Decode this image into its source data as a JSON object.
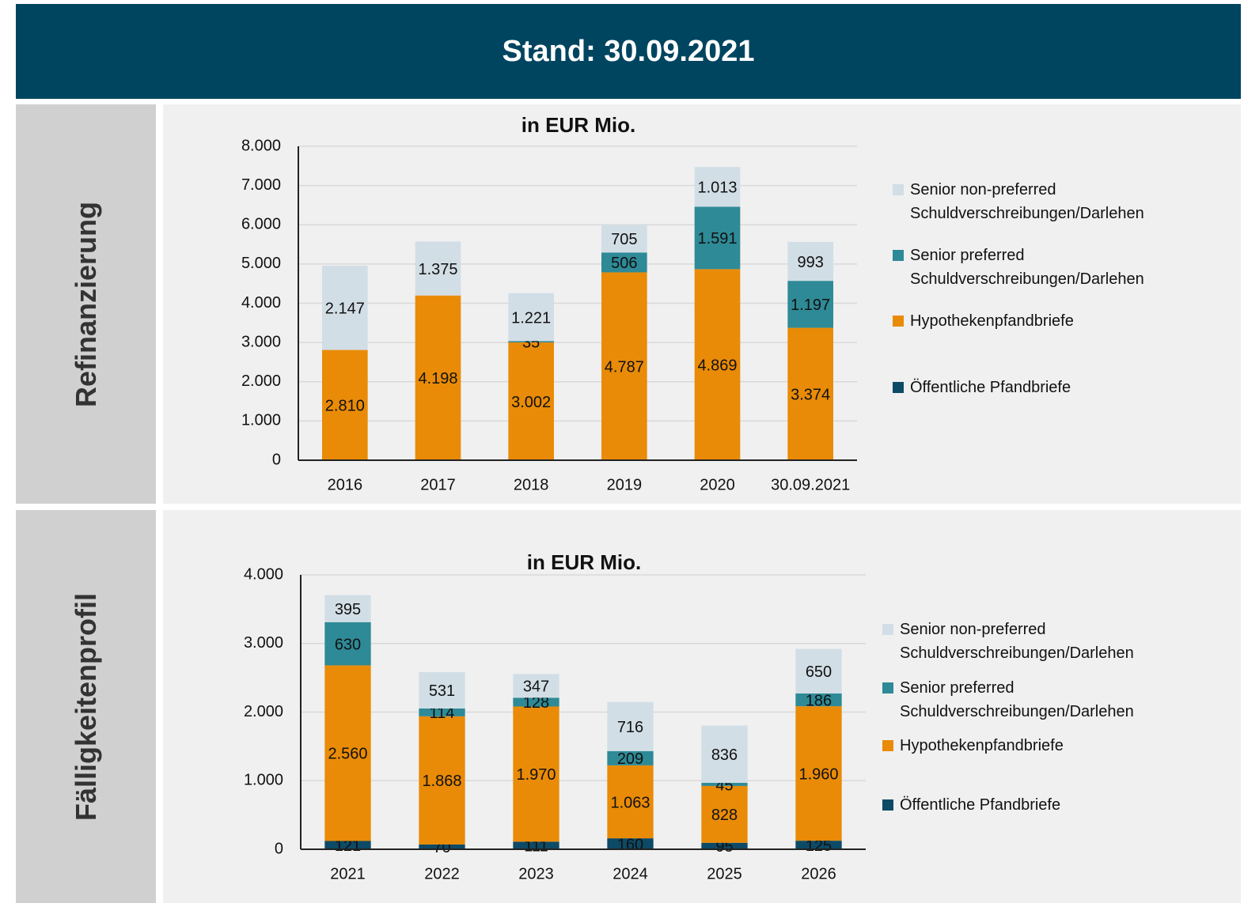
{
  "header": {
    "title": "Stand:  30.09.2021"
  },
  "sections": [
    "Refinanzierung",
    "Fälligkeitenprofil"
  ],
  "chart_data": [
    {
      "type": "bar",
      "stacked": true,
      "title": "in EUR Mio.",
      "categories": [
        "2016",
        "2017",
        "2018",
        "2019",
        "2020",
        "30.09.2021"
      ],
      "ylim": [
        0,
        8000
      ],
      "grid": true,
      "legend": "right",
      "yticks": [
        0,
        {
          "value": 1000,
          "label": "1.000"
        },
        {
          "value": 2000,
          "label": "2.000"
        },
        {
          "value": 3000,
          "label": "3.000"
        },
        {
          "value": 4000,
          "label": "4.000"
        },
        {
          "value": 5000,
          "label": "5.000"
        },
        {
          "value": 6000,
          "label": "6.000"
        },
        {
          "value": 7000,
          "label": "7.000"
        },
        {
          "value": 8000,
          "label": "8.000"
        }
      ],
      "series": [
        {
          "name": "Senior non-preferred Schuldverschreibungen/Darlehen",
          "color": "#d2dee6",
          "values": [
            2147,
            1375,
            1221,
            705,
            1013,
            993
          ],
          "value_labels": [
            "2.147",
            "1.375",
            "1.221",
            "705",
            "1.013",
            "993"
          ]
        },
        {
          "name": "Senior preferred Schuldverschreibungen/Darlehen",
          "color": "#2e8a96",
          "values": [
            null,
            null,
            35,
            506,
            1591,
            1197
          ],
          "value_labels": [
            null,
            null,
            "35",
            "506",
            "1.591",
            "1.197"
          ]
        },
        {
          "name": "Hypothekenpfandbriefe",
          "color": "#e98b07",
          "values": [
            2810,
            4198,
            3002,
            4787,
            4869,
            3374
          ],
          "value_labels": [
            "2.810",
            "4.198",
            "3.002",
            "4.787",
            "4.869",
            "3.374"
          ]
        },
        {
          "name": "Öffentliche Pfandbriefe",
          "color": "#0d4a66",
          "values": [
            null,
            null,
            null,
            null,
            null,
            null
          ],
          "value_labels": [
            null,
            null,
            null,
            null,
            null,
            null
          ]
        }
      ]
    },
    {
      "type": "bar",
      "stacked": true,
      "title": "in EUR Mio.",
      "categories": [
        "2021",
        "2022",
        "2023",
        "2024",
        "2025",
        "2026"
      ],
      "ylim": [
        0,
        4000
      ],
      "grid": true,
      "legend": "right",
      "yticks": [
        0,
        {
          "value": 1000,
          "label": "1.000"
        },
        {
          "value": 2000,
          "label": "2.000"
        },
        {
          "value": 3000,
          "label": "3.000"
        },
        {
          "value": 4000,
          "label": "4.000"
        }
      ],
      "series": [
        {
          "name": "Senior non-preferred Schuldverschreibungen/Darlehen",
          "color": "#d2dee6",
          "values": [
            395,
            531,
            347,
            716,
            836,
            650
          ]
        },
        {
          "name": "Senior preferred Schuldverschreibungen/Darlehen",
          "color": "#2e8a96",
          "values": [
            630,
            114,
            128,
            209,
            45,
            186
          ]
        },
        {
          "name": "Hypothekenpfandbriefe",
          "color": "#e98b07",
          "values": [
            2560,
            1868,
            1970,
            1063,
            828,
            1960
          ],
          "value_labels": [
            "2.560",
            "1.868",
            "1.970",
            "1.063",
            "828",
            "1.960"
          ]
        },
        {
          "name": "Öffentliche Pfandbriefe",
          "color": "#0d4a66",
          "values": [
            121,
            70,
            111,
            160,
            95,
            125
          ]
        }
      ]
    }
  ]
}
